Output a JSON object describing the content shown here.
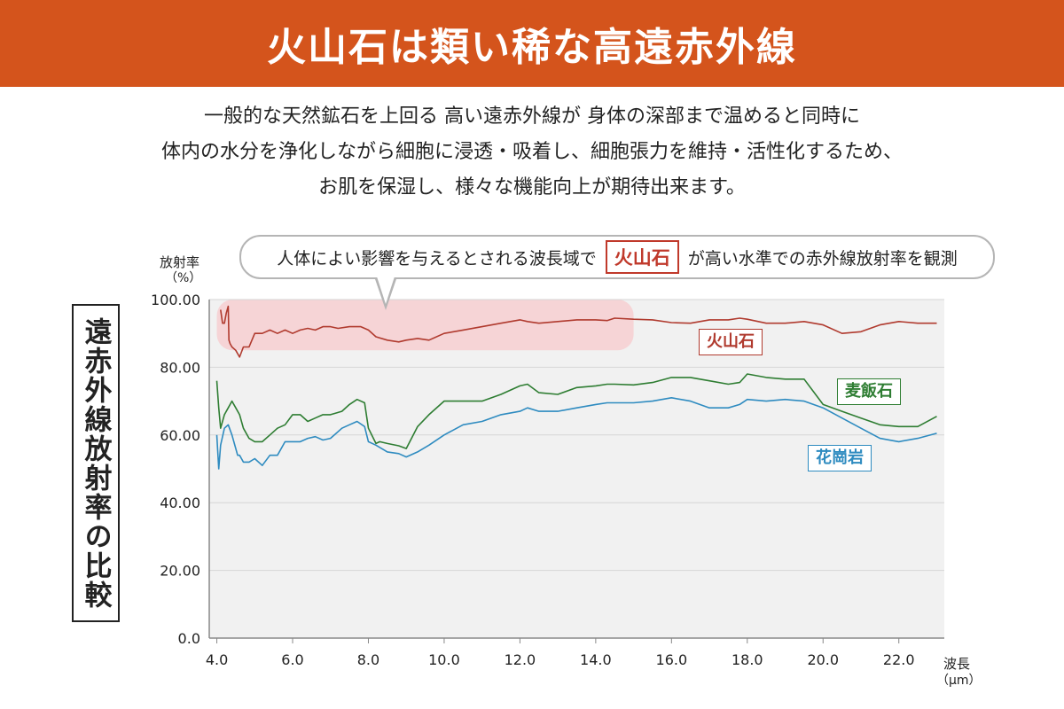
{
  "header": {
    "title": "火山石は類い稀な高遠赤外線"
  },
  "intro": {
    "lines": [
      "一般的な天然鉱石を上回る 高い遠赤外線が 身体の深部まで温めると同時に",
      "体内の水分を浄化しながら細胞に浸透・吸着し、細胞張力を維持・活性化するため、",
      "お肌を保湿し、様々な機能向上が期待出来ます。"
    ]
  },
  "side_title": "遠赤外線放射率の比較",
  "callout": {
    "before": "人体によい影響を与えるとされる波長域で",
    "highlight": "火山石",
    "after": "が高い水準での赤外線放射率を観測"
  },
  "colors": {
    "volcanic": "#b03a2e",
    "bakuhan": "#2e7d32",
    "granite": "#2e8bc0",
    "band": "#f6d4d6",
    "plot_bg": "#f1f1f1",
    "banner": "#d4541c"
  },
  "chart_data": {
    "type": "line",
    "ylabel": "放射率",
    "ylabel_unit": "（%）",
    "xlabel": "波長",
    "xlabel_unit": "（μm）",
    "xlim": [
      3.8,
      23.2
    ],
    "ylim": [
      0,
      100
    ],
    "x_ticks": [
      "4.0",
      "6.0",
      "8.0",
      "10.0",
      "12.0",
      "14.0",
      "16.0",
      "18.0",
      "20.0",
      "22.0"
    ],
    "x_tick_values": [
      4,
      6,
      8,
      10,
      12,
      14,
      16,
      18,
      20,
      22
    ],
    "y_ticks": [
      "0.0",
      "20.00",
      "40.00",
      "60.00",
      "80.00",
      "100.00"
    ],
    "y_tick_values": [
      0,
      20,
      40,
      60,
      80,
      100
    ],
    "highlight_band": {
      "x": [
        4.0,
        15.0
      ],
      "y": [
        85,
        100
      ]
    },
    "series": [
      {
        "name": "火山石",
        "color": "#b03a2e",
        "x": [
          4.1,
          4.15,
          4.2,
          4.25,
          4.3,
          4.32,
          4.35,
          4.4,
          4.5,
          4.6,
          4.7,
          4.85,
          5.0,
          5.2,
          5.4,
          5.6,
          5.8,
          6.0,
          6.2,
          6.4,
          6.6,
          6.8,
          7.0,
          7.2,
          7.5,
          7.8,
          8.0,
          8.2,
          8.5,
          8.8,
          9.0,
          9.3,
          9.6,
          10.0,
          10.5,
          11.0,
          11.5,
          12.0,
          12.2,
          12.5,
          13.0,
          13.5,
          14.0,
          14.3,
          14.5,
          15.0,
          15.5,
          16.0,
          16.5,
          17.0,
          17.5,
          17.8,
          18.0,
          18.5,
          19.0,
          19.5,
          20.0,
          20.5,
          21.0,
          21.5,
          22.0,
          22.5,
          23.0
        ],
        "values": [
          97,
          93,
          93,
          96,
          98,
          88,
          87,
          86,
          85,
          83,
          86,
          86,
          90,
          90,
          91,
          90,
          91,
          90,
          91,
          91.5,
          91,
          92,
          92,
          91.5,
          92,
          92,
          91,
          89,
          88,
          87.5,
          88,
          88.5,
          88,
          90,
          91,
          92,
          93,
          94,
          93.5,
          93,
          93.5,
          94,
          94,
          93.8,
          94.5,
          94.2,
          94,
          93.2,
          93,
          94,
          94,
          94.5,
          94.2,
          93,
          93,
          93.5,
          92.5,
          90,
          90.5,
          92.5,
          93.5,
          93,
          93
        ]
      },
      {
        "name": "麦飯石",
        "color": "#2e7d32",
        "x": [
          4.0,
          4.05,
          4.1,
          4.2,
          4.3,
          4.4,
          4.5,
          4.6,
          4.7,
          4.85,
          5.0,
          5.2,
          5.4,
          5.6,
          5.8,
          6.0,
          6.2,
          6.4,
          6.6,
          6.8,
          7.0,
          7.3,
          7.5,
          7.7,
          7.9,
          8.0,
          8.2,
          8.3,
          8.5,
          8.8,
          9.0,
          9.3,
          9.6,
          10.0,
          10.5,
          11.0,
          11.5,
          12.0,
          12.2,
          12.5,
          13.0,
          13.5,
          14.0,
          14.3,
          14.5,
          15.0,
          15.5,
          16.0,
          16.5,
          17.0,
          17.5,
          17.8,
          18.0,
          18.5,
          19.0,
          19.5,
          20.0,
          20.5,
          21.0,
          21.5,
          22.0,
          22.5,
          23.0
        ],
        "values": [
          76,
          68,
          62,
          66,
          68,
          70,
          68,
          66,
          62,
          59,
          58,
          58,
          60,
          62,
          63,
          66,
          66,
          64,
          65,
          66,
          66,
          67,
          69,
          70.5,
          69.5,
          62,
          57.5,
          58,
          57.5,
          56.8,
          56,
          62.5,
          66,
          70,
          70,
          70,
          72,
          74.5,
          75,
          72.5,
          72,
          74,
          74.5,
          75,
          75,
          74.8,
          75.5,
          77,
          77,
          76,
          75,
          75.5,
          78,
          77,
          76.5,
          76.5,
          69,
          67,
          65,
          63,
          62.5,
          62.5,
          65.5
        ]
      },
      {
        "name": "花崗岩",
        "color": "#2e8bc0",
        "x": [
          4.0,
          4.05,
          4.1,
          4.2,
          4.3,
          4.4,
          4.5,
          4.55,
          4.6,
          4.7,
          4.85,
          5.0,
          5.2,
          5.4,
          5.6,
          5.8,
          6.0,
          6.2,
          6.4,
          6.6,
          6.8,
          7.0,
          7.3,
          7.5,
          7.7,
          7.9,
          8.0,
          8.2,
          8.5,
          8.8,
          9.0,
          9.3,
          9.6,
          10.0,
          10.5,
          11.0,
          11.5,
          12.0,
          12.2,
          12.5,
          13.0,
          13.5,
          14.0,
          14.3,
          14.5,
          15.0,
          15.5,
          16.0,
          16.5,
          17.0,
          17.5,
          17.8,
          18.0,
          18.5,
          19.0,
          19.5,
          20.0,
          20.5,
          21.0,
          21.5,
          22.0,
          22.5,
          23.0
        ],
        "values": [
          60,
          50,
          57,
          62,
          63,
          60,
          56,
          54,
          54,
          52,
          52,
          53,
          51,
          54,
          54,
          58,
          58,
          58,
          59,
          59.5,
          58.5,
          59,
          62,
          63,
          64,
          62.5,
          58,
          57,
          55,
          54.5,
          53.5,
          55,
          57,
          60,
          63,
          64,
          66,
          67,
          68,
          67,
          67,
          68,
          69,
          69.5,
          69.5,
          69.5,
          70,
          71,
          70,
          68,
          68,
          69,
          70.5,
          70,
          70.5,
          70,
          68,
          65,
          62,
          59,
          58,
          59,
          60.5
        ]
      }
    ]
  }
}
